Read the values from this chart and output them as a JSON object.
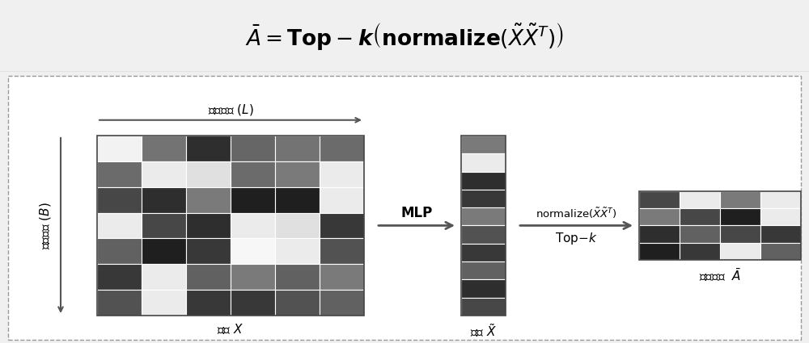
{
  "title_bg": "#dcdcdc",
  "main_bg": "#ffffff",
  "outer_bg": "#f0f0f0",
  "input_matrix": [
    [
      0.05,
      0.55,
      0.82,
      0.6,
      0.55,
      0.58
    ],
    [
      0.58,
      0.08,
      0.12,
      0.58,
      0.52,
      0.08
    ],
    [
      0.72,
      0.82,
      0.52,
      0.88,
      0.88,
      0.08
    ],
    [
      0.08,
      0.72,
      0.82,
      0.08,
      0.12,
      0.78
    ],
    [
      0.62,
      0.88,
      0.78,
      0.03,
      0.08,
      0.68
    ],
    [
      0.78,
      0.08,
      0.62,
      0.52,
      0.62,
      0.52
    ],
    [
      0.68,
      0.08,
      0.78,
      0.78,
      0.68,
      0.62
    ]
  ],
  "output_vector": [
    0.52,
    0.08,
    0.82,
    0.78,
    0.52,
    0.68,
    0.78,
    0.62,
    0.82,
    0.72
  ],
  "adj_matrix": [
    [
      0.72,
      0.08,
      0.52,
      0.08
    ],
    [
      0.52,
      0.72,
      0.88,
      0.08
    ],
    [
      0.82,
      0.62,
      0.72,
      0.78
    ],
    [
      0.88,
      0.78,
      0.08,
      0.62
    ]
  ]
}
